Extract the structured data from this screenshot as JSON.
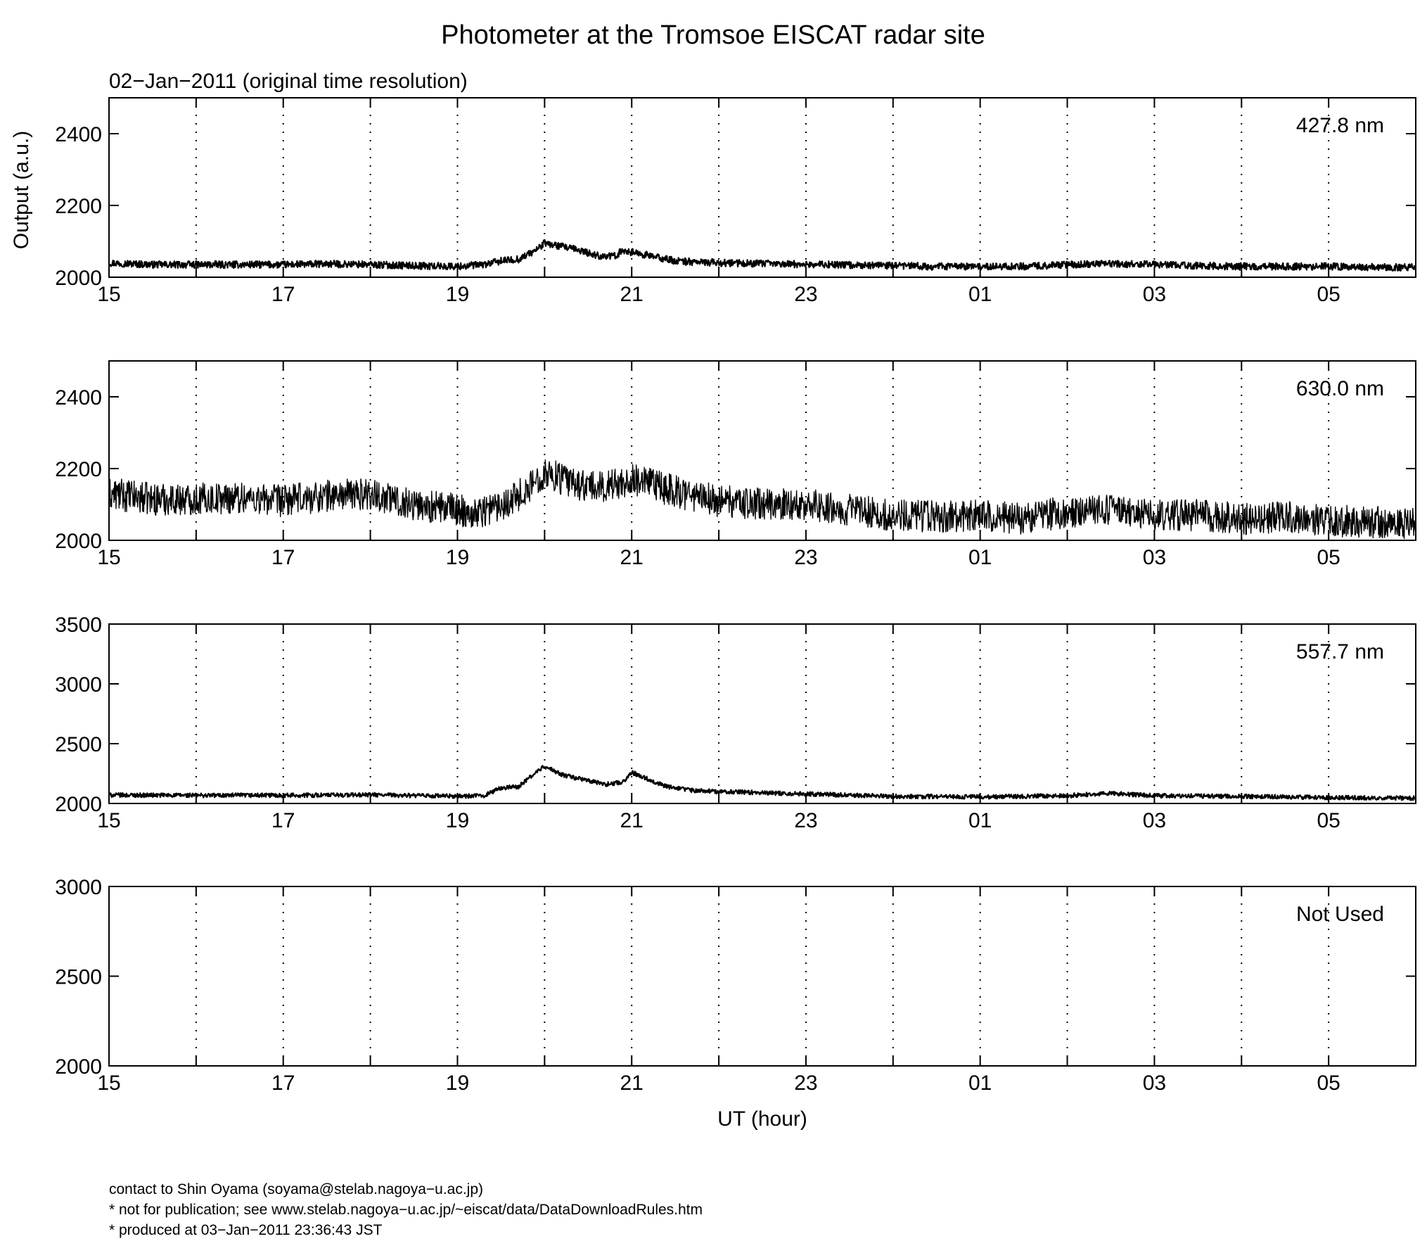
{
  "title": "Photometer at the Tromsoe EISCAT radar site",
  "subtitle": "02−Jan−2011 (original time resolution)",
  "ylabel": "Output (a.u.)",
  "xlabel": "UT (hour)",
  "x_ticks": [
    "15",
    "17",
    "19",
    "21",
    "23",
    "01",
    "03",
    "05"
  ],
  "footer": [
    "contact to Shin Oyama (soyama@stelab.nagoya−u.ac.jp)",
    "* not for publication; see www.stelab.nagoya−u.ac.jp/~eiscat/data/DataDownloadRules.htm",
    "* produced at 03−Jan−2011 23:36:43 JST"
  ],
  "chart_data": [
    {
      "type": "line",
      "label": "427.8 nm",
      "x_range": [
        15,
        30
      ],
      "ylim": [
        2000,
        2500
      ],
      "y_ticks": [
        2000,
        2200,
        2400
      ],
      "x_grid": "dotted",
      "x": [
        15,
        15.5,
        16,
        16.5,
        17,
        17.5,
        18,
        18.5,
        19,
        19.3,
        19.5,
        19.7,
        19.9,
        20.0,
        20.2,
        20.4,
        20.6,
        20.8,
        20.9,
        21.0,
        21.2,
        21.5,
        22,
        22.5,
        23,
        23.5,
        24,
        24.5,
        25,
        25.5,
        26,
        26.5,
        27,
        27.5,
        28,
        28.5,
        29,
        29.5,
        30
      ],
      "y": [
        2040,
        2035,
        2035,
        2035,
        2035,
        2037,
        2035,
        2032,
        2030,
        2035,
        2045,
        2050,
        2075,
        2095,
        2085,
        2075,
        2060,
        2058,
        2075,
        2070,
        2060,
        2045,
        2040,
        2038,
        2036,
        2034,
        2032,
        2030,
        2030,
        2030,
        2035,
        2038,
        2035,
        2032,
        2030,
        2030,
        2030,
        2028,
        2027
      ],
      "noise": 10
    },
    {
      "type": "line",
      "label": "630.0 nm",
      "x_range": [
        15,
        30
      ],
      "ylim": [
        2000,
        2500
      ],
      "y_ticks": [
        2000,
        2200,
        2400
      ],
      "x_grid": "dotted",
      "x": [
        15,
        15.5,
        16,
        16.5,
        17,
        17.5,
        18,
        18.5,
        19,
        19.2,
        19.5,
        19.8,
        20.0,
        20.3,
        20.6,
        21.0,
        21.3,
        21.6,
        22,
        22.5,
        23,
        23.5,
        24,
        24.5,
        25,
        25.5,
        26,
        26.5,
        27,
        27.5,
        28,
        28.5,
        29,
        29.5,
        30
      ],
      "y": [
        2130,
        2115,
        2115,
        2120,
        2110,
        2125,
        2130,
        2100,
        2085,
        2075,
        2100,
        2140,
        2190,
        2160,
        2145,
        2170,
        2150,
        2130,
        2110,
        2100,
        2100,
        2085,
        2070,
        2065,
        2070,
        2060,
        2080,
        2085,
        2070,
        2070,
        2060,
        2065,
        2055,
        2050,
        2048
      ],
      "noise": 45
    },
    {
      "type": "line",
      "label": "557.7 nm",
      "x_range": [
        15,
        30
      ],
      "ylim": [
        2000,
        3500
      ],
      "y_ticks": [
        2000,
        2500,
        3000,
        3500
      ],
      "x_grid": "dotted",
      "x": [
        15,
        16,
        17,
        18,
        19,
        19.3,
        19.5,
        19.7,
        19.9,
        20.0,
        20.2,
        20.5,
        20.7,
        20.9,
        21.0,
        21.2,
        21.4,
        21.7,
        22,
        23,
        24,
        25,
        26,
        26.5,
        27,
        28,
        29,
        30
      ],
      "y": [
        2070,
        2068,
        2068,
        2072,
        2060,
        2065,
        2130,
        2140,
        2260,
        2310,
        2240,
        2190,
        2160,
        2180,
        2260,
        2200,
        2140,
        2110,
        2100,
        2080,
        2060,
        2055,
        2065,
        2085,
        2065,
        2060,
        2050,
        2045
      ],
      "noise": 18
    },
    {
      "type": "line",
      "label": "Not Used",
      "x_range": [
        15,
        30
      ],
      "ylim": [
        2000,
        3000
      ],
      "y_ticks": [
        2000,
        2500,
        3000
      ],
      "x_grid": "dotted",
      "x": [],
      "y": [],
      "noise": 0
    }
  ]
}
